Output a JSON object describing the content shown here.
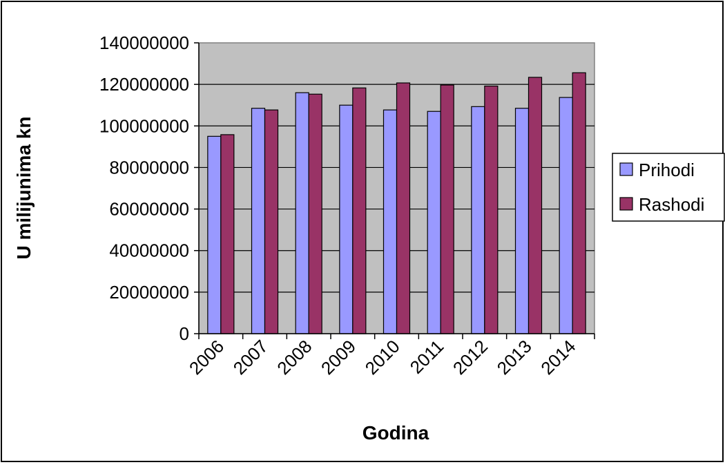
{
  "chart_data": {
    "type": "bar",
    "title": "",
    "xlabel": "Godina",
    "ylabel": "U milijunima kn",
    "categories": [
      "2006",
      "2007",
      "2008",
      "2009",
      "2010",
      "2011",
      "2012",
      "2013",
      "2014"
    ],
    "series": [
      {
        "name": "Prihodi",
        "color": "#9999ff",
        "values": [
          95000000,
          108500000,
          116000000,
          110000000,
          107700000,
          107000000,
          109300000,
          108500000,
          113700000
        ]
      },
      {
        "name": "Rashodi",
        "color": "#993366",
        "values": [
          95800000,
          107700000,
          115300000,
          118300000,
          120700000,
          119700000,
          119200000,
          123400000,
          125600000
        ]
      }
    ],
    "ylim": [
      0,
      140000000
    ],
    "yticks": [
      0,
      20000000,
      40000000,
      60000000,
      80000000,
      100000000,
      120000000,
      140000000
    ],
    "ytick_labels": [
      "0",
      "20000000",
      "40000000",
      "60000000",
      "80000000",
      "100000000",
      "120000000",
      "140000000"
    ],
    "grid": "horizontal",
    "plot_background": "#c0c0c0",
    "legend_position": "right"
  }
}
